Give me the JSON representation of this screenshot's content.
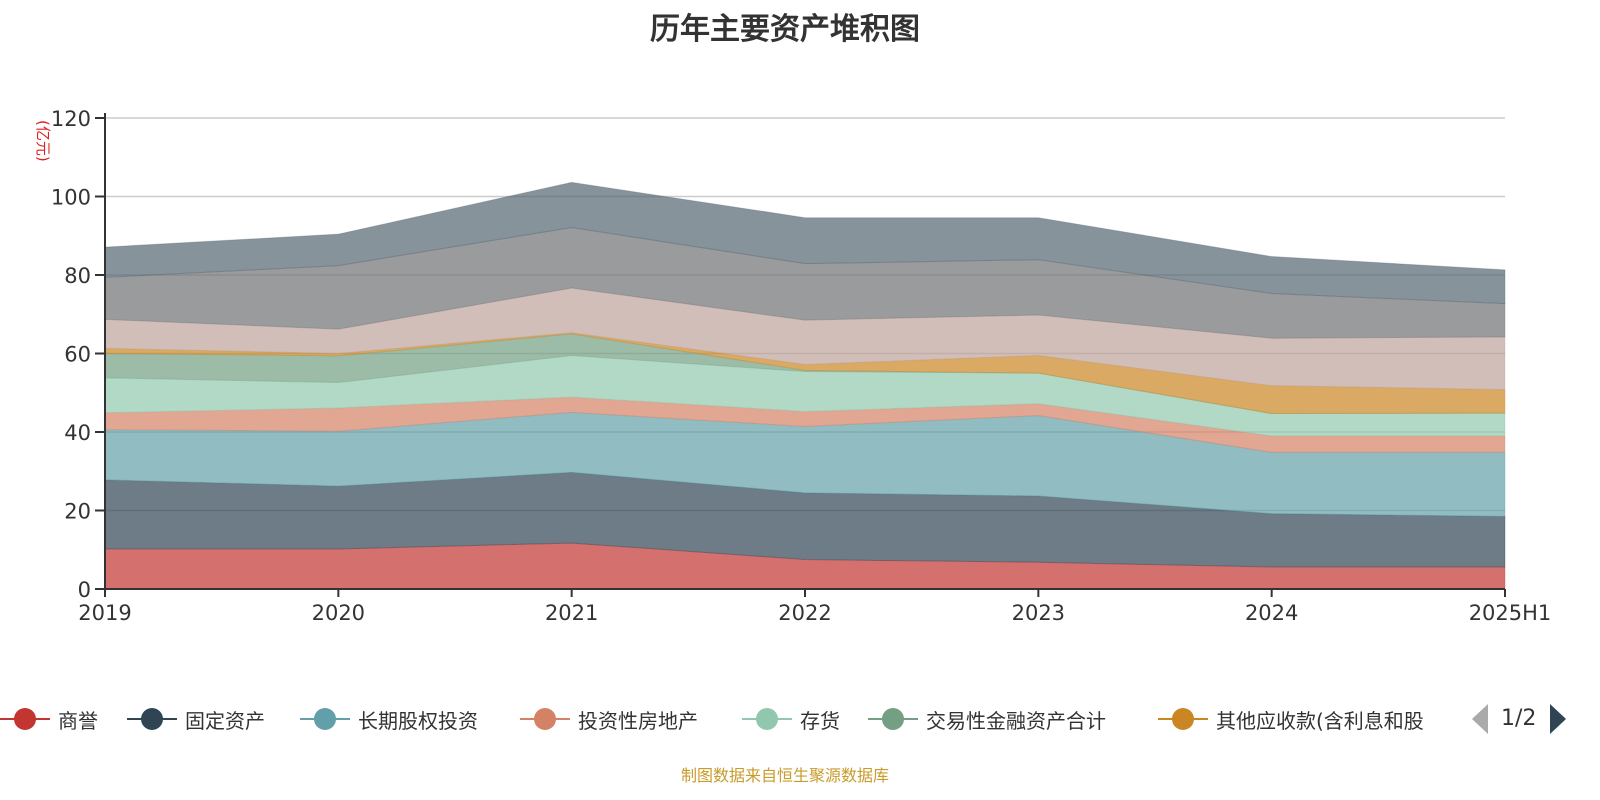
{
  "chart_data": {
    "type": "area",
    "stacked": true,
    "title": "历年主要资产堆积图",
    "ylabel": "(亿元)",
    "ylim": [
      0,
      120
    ],
    "yticks": [
      0,
      20,
      40,
      60,
      80,
      100,
      120
    ],
    "grid": true,
    "categories": [
      "2019",
      "2020",
      "2021",
      "2022",
      "2023",
      "2024",
      "2025H1"
    ],
    "legend_position": "bottom",
    "legend_page": "1/2",
    "series": [
      {
        "name": "商誉",
        "color": "#c23531",
        "values": [
          10.2,
          10.2,
          11.7,
          7.5,
          6.8,
          5.6,
          5.6
        ]
      },
      {
        "name": "固定资产",
        "color": "#2f4554",
        "values": [
          17.6,
          16.0,
          18.0,
          17.0,
          16.9,
          13.6,
          12.9
        ]
      },
      {
        "name": "长期股权投资",
        "color": "#61a0a8",
        "values": [
          12.8,
          14.0,
          15.3,
          16.9,
          20.5,
          15.6,
          16.3
        ]
      },
      {
        "name": "投资性房地产",
        "color": "#d48265",
        "values": [
          4.3,
          5.9,
          3.9,
          3.8,
          3.0,
          4.2,
          4.2
        ]
      },
      {
        "name": "存货",
        "color": "#91c7ae",
        "values": [
          8.9,
          6.5,
          10.6,
          10.2,
          7.8,
          5.7,
          5.8
        ]
      },
      {
        "name": "交易性金融资产合计",
        "color": "#749f83",
        "values": [
          6.2,
          6.8,
          5.5,
          0.3,
          0.0,
          0.0,
          0.0
        ]
      },
      {
        "name": "其他应收款(含利息和股",
        "color": "#ca8622",
        "values": [
          1.3,
          0.6,
          0.3,
          1.5,
          4.5,
          7.1,
          6.0
        ]
      },
      {
        "name": null,
        "color": "#bda29a",
        "values": [
          7.4,
          6.2,
          11.4,
          11.3,
          10.3,
          12.1,
          13.4
        ]
      },
      {
        "name": null,
        "color": "#6e7074",
        "values": [
          10.7,
          16.2,
          15.4,
          14.4,
          14.1,
          11.4,
          8.5
        ]
      },
      {
        "name": null,
        "color": "#546570",
        "values": [
          7.7,
          8.0,
          11.5,
          11.7,
          10.7,
          9.4,
          8.6
        ]
      }
    ]
  },
  "source": "制图数据来自恒生聚源数据库"
}
